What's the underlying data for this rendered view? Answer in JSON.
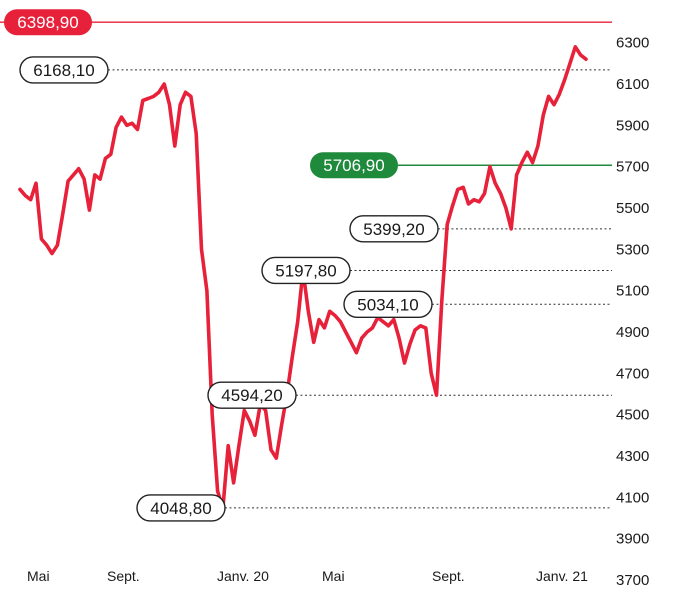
{
  "chart_data": {
    "type": "line",
    "title": "",
    "xlabel": "",
    "ylabel": "",
    "x_ticks": [
      "Mai",
      "Sept.",
      "Janv. 20",
      "Mai",
      "Sept.",
      "Janv. 21"
    ],
    "y_ticks": [
      3700,
      3900,
      4100,
      4300,
      4500,
      4700,
      4900,
      5100,
      5300,
      5500,
      5700,
      5900,
      6100,
      6300
    ],
    "ylim": [
      3700,
      6400
    ],
    "series": [
      {
        "name": "",
        "color": "#e8213a",
        "values": [
          5590,
          5560,
          5540,
          5620,
          5350,
          5320,
          5280,
          5320,
          5470,
          5630,
          5660,
          5690,
          5640,
          5490,
          5660,
          5640,
          5740,
          5760,
          5890,
          5940,
          5900,
          5910,
          5880,
          6020,
          6030,
          6040,
          6060,
          6100,
          6000,
          5800,
          6000,
          6060,
          6040,
          5860,
          5300,
          5100,
          4500,
          4130,
          4048,
          4350,
          4170,
          4350,
          4520,
          4470,
          4400,
          4550,
          4520,
          4330,
          4290,
          4450,
          4600,
          4780,
          4950,
          5197,
          5000,
          4850,
          4960,
          4920,
          5000,
          4980,
          4950,
          4900,
          4850,
          4800,
          4870,
          4900,
          4920,
          4970,
          4950,
          4930,
          4960,
          4870,
          4750,
          4840,
          4910,
          4930,
          4920,
          4700,
          4594,
          5050,
          5420,
          5510,
          5590,
          5600,
          5520,
          5540,
          5530,
          5570,
          5700,
          5620,
          5570,
          5500,
          5399,
          5660,
          5720,
          5770,
          5720,
          5800,
          5950,
          6040,
          6000,
          6050,
          6120,
          6200,
          6280,
          6240,
          6220
        ]
      }
    ],
    "reference_lines": [
      {
        "value": 6398.9,
        "label": "6398,90",
        "style": "solid",
        "color": "#e8213a"
      },
      {
        "value": 6168.1,
        "label": "6168,10",
        "style": "dotted",
        "color": "#333333"
      },
      {
        "value": 5706.9,
        "label": "5706,90",
        "style": "solid",
        "color": "#1f8a3c"
      },
      {
        "value": 5399.2,
        "label": "5399,20",
        "style": "dotted",
        "color": "#333333"
      },
      {
        "value": 5197.8,
        "label": "5197,80",
        "style": "dotted",
        "color": "#333333"
      },
      {
        "value": 5034.1,
        "label": "5034,10",
        "style": "dotted",
        "color": "#333333"
      },
      {
        "value": 4594.2,
        "label": "4594,20",
        "style": "dotted",
        "color": "#333333"
      },
      {
        "value": 4048.8,
        "label": "4048,80",
        "style": "dotted",
        "color": "#333333"
      }
    ],
    "grid": false,
    "y_axis_position": "right"
  }
}
